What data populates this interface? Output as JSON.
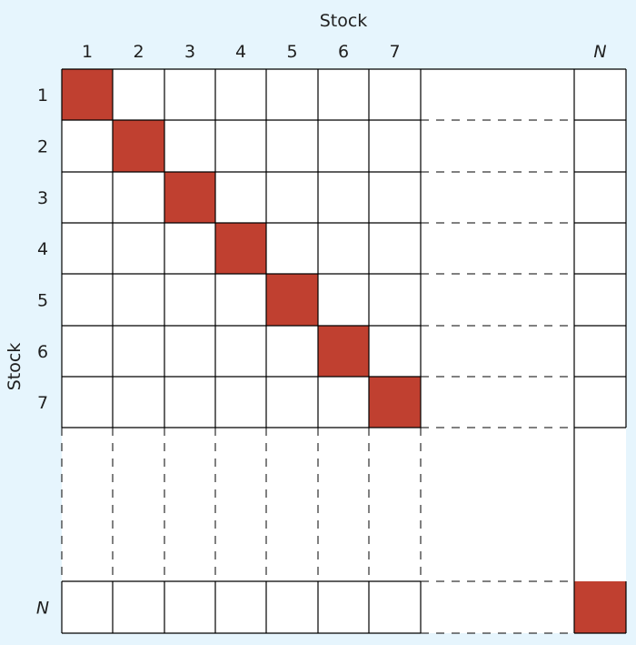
{
  "diagram": {
    "top_axis_title": "Stock",
    "left_axis_title": "Stock",
    "column_labels": [
      "1",
      "2",
      "3",
      "4",
      "5",
      "6",
      "7",
      "N"
    ],
    "row_labels": [
      "1",
      "2",
      "3",
      "4",
      "5",
      "6",
      "7",
      "N"
    ],
    "highlighted_cells": [
      {
        "row": "1",
        "col": "1"
      },
      {
        "row": "2",
        "col": "2"
      },
      {
        "row": "3",
        "col": "3"
      },
      {
        "row": "4",
        "col": "4"
      },
      {
        "row": "5",
        "col": "5"
      },
      {
        "row": "6",
        "col": "6"
      },
      {
        "row": "7",
        "col": "7"
      },
      {
        "row": "N",
        "col": "N"
      }
    ],
    "colors": {
      "background": "#e6f5fd",
      "cell_fill": "#ffffff",
      "highlight": "#c04030",
      "line": "#000000"
    }
  }
}
